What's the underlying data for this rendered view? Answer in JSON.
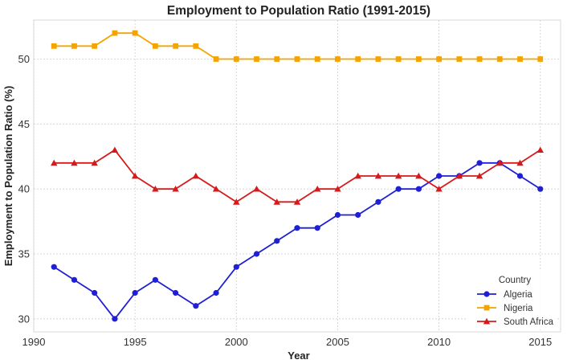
{
  "chart_data": {
    "type": "line",
    "title": "Employment to Population Ratio (1991-2015)",
    "xlabel": "Year",
    "ylabel": "Employment to Population Ratio (%)",
    "xlim": [
      1990,
      2016
    ],
    "ylim": [
      29,
      53
    ],
    "xticks": [
      1990,
      1995,
      2000,
      2005,
      2010,
      2015
    ],
    "yticks": [
      30,
      35,
      40,
      45,
      50
    ],
    "grid": true,
    "legend": {
      "title": "Country",
      "position": "bottom-right"
    },
    "x": [
      1991,
      1992,
      1993,
      1994,
      1995,
      1996,
      1997,
      1998,
      1999,
      2000,
      2001,
      2002,
      2003,
      2004,
      2005,
      2006,
      2007,
      2008,
      2009,
      2010,
      2011,
      2012,
      2013,
      2014,
      2015
    ],
    "series": [
      {
        "name": "Algeria",
        "color": "#1f1fd6",
        "marker": "circle",
        "values": [
          34,
          33,
          32,
          30,
          32,
          33,
          32,
          31,
          32,
          34,
          35,
          36,
          37,
          37,
          38,
          38,
          39,
          40,
          40,
          41,
          41,
          42,
          42,
          41,
          40
        ]
      },
      {
        "name": "Nigeria",
        "color": "#f5a300",
        "marker": "square",
        "values": [
          51,
          51,
          51,
          52,
          52,
          51,
          51,
          51,
          50,
          50,
          50,
          50,
          50,
          50,
          50,
          50,
          50,
          50,
          50,
          50,
          50,
          50,
          50,
          50,
          50
        ]
      },
      {
        "name": "South Africa",
        "color": "#d6191b",
        "marker": "triangle",
        "values": [
          42,
          42,
          42,
          43,
          41,
          40,
          40,
          41,
          40,
          39,
          40,
          39,
          39,
          40,
          40,
          41,
          41,
          41,
          41,
          40,
          41,
          41,
          42,
          42,
          43
        ]
      }
    ]
  }
}
